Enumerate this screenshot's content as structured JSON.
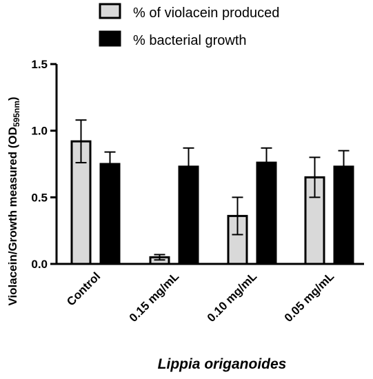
{
  "chart_data": {
    "type": "bar",
    "categories": [
      "Control",
      "0.15 mg/mL",
      "0.10 mg/mL",
      "0.05 mg/mL"
    ],
    "series": [
      {
        "name": "% of violacein produced",
        "values": [
          0.92,
          0.05,
          0.36,
          0.65
        ],
        "error": [
          0.16,
          0.02,
          0.14,
          0.15
        ],
        "fill": "#d9d9d9"
      },
      {
        "name": "% bacterial growth",
        "values": [
          0.75,
          0.73,
          0.76,
          0.73
        ],
        "error": [
          0.09,
          0.14,
          0.11,
          0.12
        ],
        "fill": "#000000"
      }
    ],
    "xlabel": "Lippia origanoides",
    "ylabel": {
      "main": "Violacein/Growth measured (OD",
      "sub": "595nm",
      "close": ")"
    },
    "yticks": [
      "0.0",
      "0.5",
      "1.0",
      "1.5"
    ],
    "ytick_values": [
      0,
      0.5,
      1.0,
      1.5
    ],
    "ylim": [
      0,
      1.5
    ],
    "legend_position": "top",
    "grid": false
  }
}
